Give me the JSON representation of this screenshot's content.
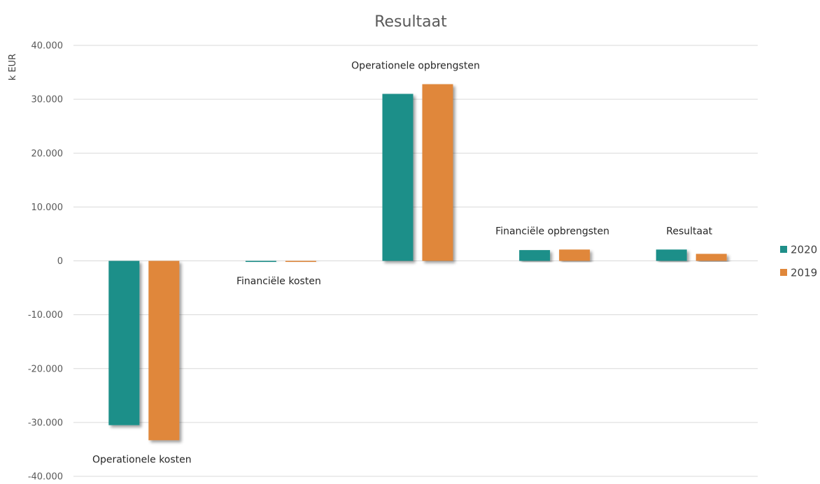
{
  "chart_data": {
    "type": "bar",
    "title": "Resultaat",
    "xlabel": "",
    "ylabel": "k EUR",
    "ylim": [
      -40000,
      40000
    ],
    "yticks": [
      40000,
      30000,
      20000,
      10000,
      0,
      -10000,
      -20000,
      -30000,
      -40000
    ],
    "ytick_labels": [
      "40.000",
      "30.000",
      "20.000",
      "10.000",
      "0",
      "-10.000",
      "-20.000",
      "-30.000",
      "-40.000"
    ],
    "grid": true,
    "legend_position": "right",
    "categories": [
      "Operationele kosten",
      "Financiële kosten",
      "Operationele opbrengsten",
      "Financiële opbrengsten",
      "Resultaat"
    ],
    "series": [
      {
        "name": "2020",
        "color": "#1f8f89",
        "values": [
          -30500,
          -200,
          31000,
          2000,
          2100
        ]
      },
      {
        "name": "2019",
        "color": "#e0873a",
        "values": [
          -33300,
          -200,
          32800,
          2100,
          1300
        ]
      }
    ]
  }
}
